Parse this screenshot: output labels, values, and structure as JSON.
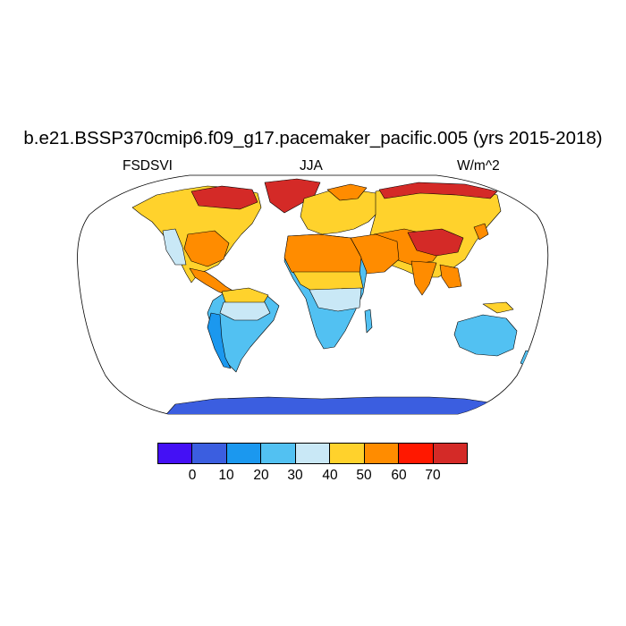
{
  "title": "b.e21.BSSP370cmip6.f09_g17.pacemaker_pacific.005 (yrs 2015-2018)",
  "left_label": "FSDSVI",
  "center_label": "JJA",
  "right_label": "W/m^2",
  "colorbar": {
    "colors": [
      "#4410f5",
      "#3b5ee0",
      "#1b98ef",
      "#52c1f2",
      "#c9e8f6",
      "#ffd22c",
      "#ff8c00",
      "#ff1800",
      "#d42a27"
    ],
    "tick_labels": [
      "0",
      "10",
      "20",
      "30",
      "40",
      "50",
      "60",
      "70"
    ]
  },
  "map": {
    "projection": "robinson",
    "ocean_color": "#ffffff"
  }
}
